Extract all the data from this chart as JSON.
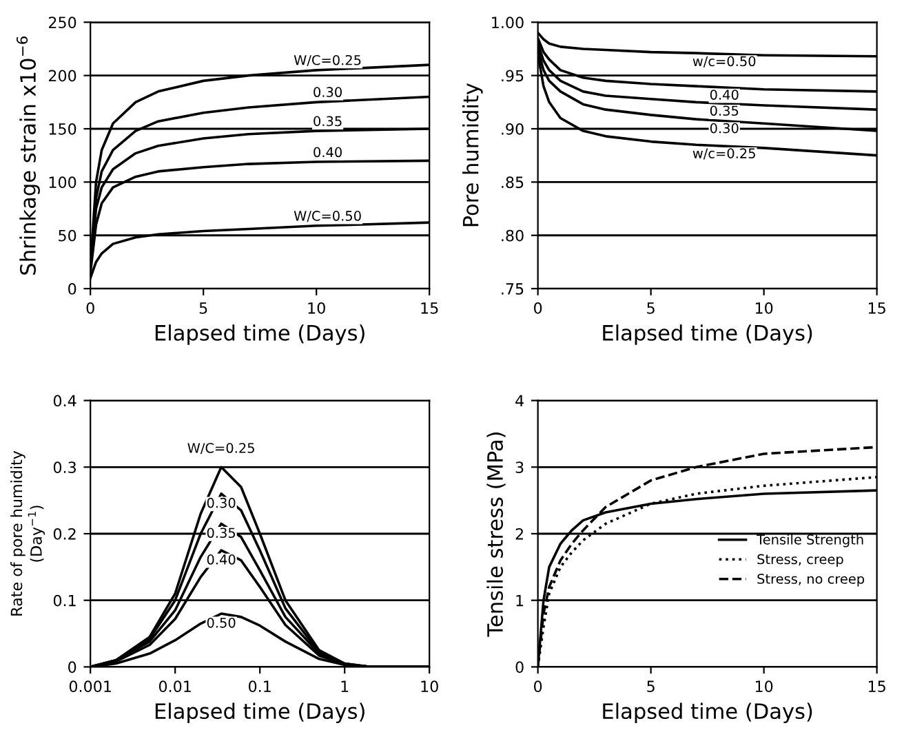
{
  "chart_data": [
    {
      "type": "line",
      "xlabel": "Elapsed time (Days)",
      "ylabel": "Shrinkage strain x10$^{−6}$",
      "xlim": [
        0,
        15
      ],
      "ylim": [
        0,
        250
      ],
      "xticks": [
        0,
        5,
        10,
        15
      ],
      "yticks": [
        0,
        50,
        100,
        150,
        200,
        250
      ],
      "grid": "y",
      "legend": false,
      "x": [
        0,
        0.25,
        0.5,
        1,
        2,
        3,
        5,
        7,
        10,
        15
      ],
      "series": [
        {
          "name": "W/C=0.25",
          "color": "#000000",
          "values": [
            20,
            100,
            130,
            155,
            175,
            185,
            195,
            200,
            205,
            210
          ]
        },
        {
          "name": "0.30",
          "color": "#000000",
          "values": [
            20,
            85,
            110,
            130,
            148,
            157,
            165,
            170,
            175,
            180
          ]
        },
        {
          "name": "0.35",
          "color": "#000000",
          "values": [
            20,
            75,
            95,
            112,
            127,
            134,
            141,
            145,
            148,
            150
          ]
        },
        {
          "name": "0.40",
          "color": "#000000",
          "values": [
            15,
            60,
            80,
            95,
            105,
            110,
            114,
            117,
            119,
            120
          ]
        },
        {
          "name": "W/C=0.50",
          "color": "#000000",
          "values": [
            10,
            25,
            33,
            42,
            48,
            51,
            54,
            56,
            59,
            62
          ]
        }
      ]
    },
    {
      "type": "line",
      "xlabel": "Elapsed time (Days)",
      "ylabel": "Pore humidity",
      "xlim": [
        0,
        15
      ],
      "ylim": [
        0.75,
        1.0
      ],
      "xticks": [
        0,
        5,
        10,
        15
      ],
      "yticks": [
        {
          "value": 0.75,
          "label": ".75"
        },
        {
          "value": 0.8,
          "label": ".80"
        },
        {
          "value": 0.85,
          "label": ".85"
        },
        {
          "value": 0.9,
          "label": ".90"
        },
        {
          "value": 0.95,
          "label": ".95"
        },
        {
          "value": 1.0,
          "label": "1.00"
        }
      ],
      "grid": "y",
      "legend": false,
      "x": [
        0,
        0.25,
        0.5,
        1,
        2,
        3,
        5,
        7,
        10,
        15
      ],
      "series": [
        {
          "name": "w/c=0.50",
          "color": "#000000",
          "values": [
            0.99,
            0.984,
            0.98,
            0.977,
            0.975,
            0.974,
            0.972,
            0.971,
            0.969,
            0.968
          ]
        },
        {
          "name": "0.40",
          "color": "#000000",
          "values": [
            0.985,
            0.972,
            0.965,
            0.955,
            0.948,
            0.945,
            0.942,
            0.94,
            0.937,
            0.935
          ]
        },
        {
          "name": "0.35",
          "color": "#000000",
          "values": [
            0.98,
            0.964,
            0.955,
            0.945,
            0.935,
            0.931,
            0.928,
            0.925,
            0.922,
            0.918
          ]
        },
        {
          "name": "0.30",
          "color": "#000000",
          "values": [
            0.975,
            0.955,
            0.945,
            0.935,
            0.923,
            0.918,
            0.913,
            0.909,
            0.905,
            0.898
          ]
        },
        {
          "name": "w/c=0.25",
          "color": "#000000",
          "values": [
            0.97,
            0.94,
            0.925,
            0.91,
            0.898,
            0.893,
            0.888,
            0.885,
            0.882,
            0.875
          ]
        }
      ]
    },
    {
      "type": "line",
      "xlabel": "Elapsed time (Days)",
      "ylabel": "Rate of pore humidity\n(Day$^{−1}$)",
      "log": "x",
      "xlim": [
        0.001,
        10
      ],
      "ylim": [
        0,
        0.4
      ],
      "xticks": [
        0.001,
        0.01,
        0.1,
        1,
        10
      ],
      "yticks": [
        0,
        0.1,
        0.2,
        0.3,
        0.4
      ],
      "grid": "y",
      "legend": false,
      "x": [
        0.001,
        0.002,
        0.005,
        0.01,
        0.02,
        0.035,
        0.06,
        0.1,
        0.2,
        0.5,
        1,
        2,
        10
      ],
      "series": [
        {
          "name": "W/C=0.25",
          "color": "#000000",
          "values": [
            0,
            0.01,
            0.045,
            0.11,
            0.23,
            0.3,
            0.27,
            0.2,
            0.1,
            0.025,
            0.005,
            0,
            0
          ]
        },
        {
          "name": "0.30",
          "color": "#000000",
          "values": [
            0,
            0.01,
            0.042,
            0.1,
            0.2,
            0.26,
            0.235,
            0.175,
            0.088,
            0.022,
            0.005,
            0,
            0
          ]
        },
        {
          "name": "0.35",
          "color": "#000000",
          "values": [
            0,
            0.01,
            0.038,
            0.085,
            0.165,
            0.215,
            0.195,
            0.145,
            0.075,
            0.02,
            0.004,
            0,
            0
          ]
        },
        {
          "name": "0.40",
          "color": "#000000",
          "values": [
            0,
            0.008,
            0.033,
            0.072,
            0.135,
            0.175,
            0.16,
            0.12,
            0.063,
            0.017,
            0.004,
            0,
            0
          ]
        },
        {
          "name": "0.50",
          "color": "#000000",
          "values": [
            0,
            0.005,
            0.02,
            0.04,
            0.065,
            0.08,
            0.075,
            0.062,
            0.038,
            0.012,
            0.003,
            0,
            0
          ]
        }
      ]
    },
    {
      "type": "line",
      "xlabel": "Elapsed time (Days)",
      "ylabel": "Tensile stress (MPa)",
      "xlim": [
        0,
        15
      ],
      "ylim": [
        0,
        4
      ],
      "xticks": [
        0,
        5,
        10,
        15
      ],
      "yticks": [
        0,
        1,
        2,
        3,
        4
      ],
      "grid": "y",
      "legend": "right",
      "x": [
        0,
        0.25,
        0.5,
        1,
        1.5,
        2,
        3,
        5,
        7,
        10,
        15
      ],
      "series": [
        {
          "name": "Tensile Strength",
          "color": "#000000",
          "line_style": "solid",
          "values": [
            0,
            1.0,
            1.5,
            1.85,
            2.05,
            2.2,
            2.32,
            2.45,
            2.52,
            2.6,
            2.65
          ]
        },
        {
          "name": "Stress, creep",
          "color": "#000000",
          "line_style": "dotted",
          "values": [
            0,
            0.6,
            1.1,
            1.5,
            1.72,
            1.9,
            2.15,
            2.45,
            2.6,
            2.72,
            2.85
          ]
        },
        {
          "name": "Stress, no creep",
          "color": "#000000",
          "line_style": "dashed",
          "values": [
            0,
            0.8,
            1.2,
            1.6,
            1.85,
            2.05,
            2.4,
            2.8,
            3.0,
            3.2,
            3.3
          ]
        }
      ]
    }
  ]
}
